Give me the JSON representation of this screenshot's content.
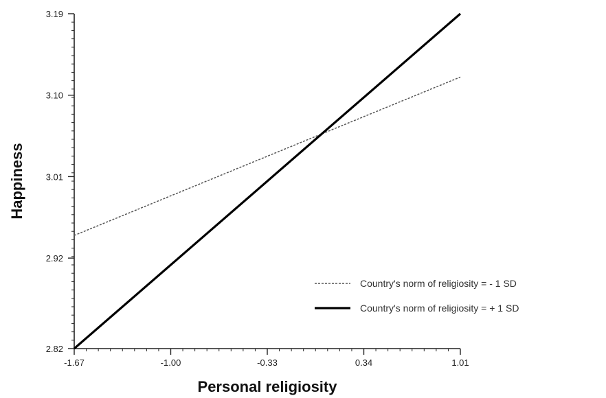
{
  "chart_data": {
    "type": "line",
    "xlabel": "Personal religiosity",
    "ylabel": "Happiness",
    "xlim": [
      -1.67,
      1.01
    ],
    "ylim": [
      2.82,
      3.19
    ],
    "x_ticks": [
      {
        "value": -1.67,
        "label": "-1.67"
      },
      {
        "value": -1.0,
        "label": "-1.00"
      },
      {
        "value": -0.33,
        "label": "-0.33"
      },
      {
        "value": 0.34,
        "label": "0.34"
      },
      {
        "value": 1.01,
        "label": "1.01"
      }
    ],
    "y_ticks": [
      {
        "value": 2.82,
        "label": "2.82"
      },
      {
        "value": 2.92,
        "label": "2.92"
      },
      {
        "value": 3.01,
        "label": "3.01"
      },
      {
        "value": 3.1,
        "label": "3.10"
      },
      {
        "value": 3.19,
        "label": "3.19"
      }
    ],
    "series": [
      {
        "name": "Country's norm of religiosity = - 1 SD",
        "style": "dashed",
        "color": "#555555",
        "x": [
          -1.67,
          1.01
        ],
        "y": [
          2.945,
          3.12
        ]
      },
      {
        "name": "Country's norm of religiosity = + 1 SD",
        "style": "solid",
        "color": "#000000",
        "x": [
          -1.67,
          1.01
        ],
        "y": [
          2.82,
          3.19
        ]
      }
    ],
    "legend_position": "bottom-right",
    "grid": false
  }
}
